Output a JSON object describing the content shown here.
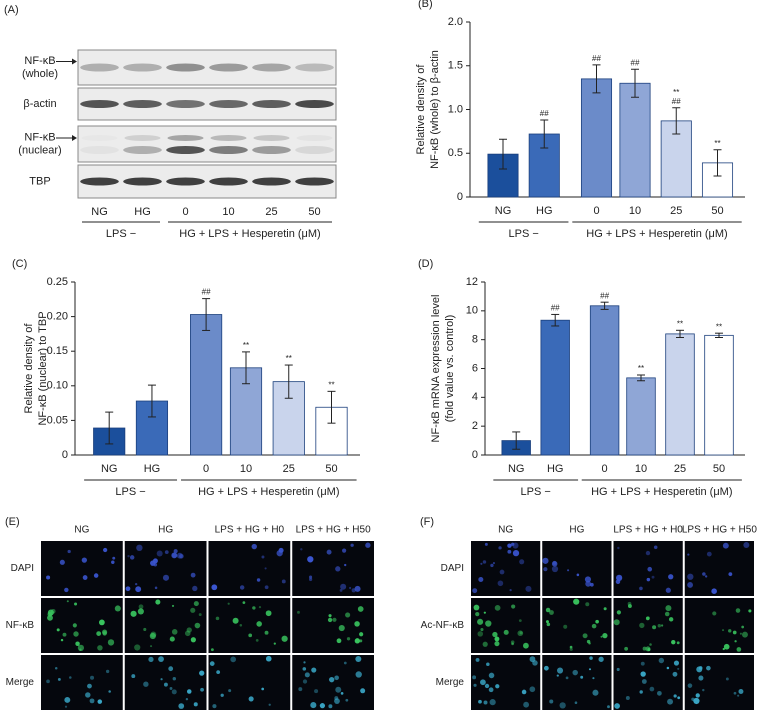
{
  "blot": {
    "panel": "(A)",
    "rows": [
      {
        "label": [
          "NF-κB",
          "(whole)"
        ]
      },
      {
        "label": [
          "β-actin"
        ]
      },
      {
        "label": [
          "NF-κB",
          "(nuclear)"
        ]
      },
      {
        "label": [
          "TBP"
        ]
      }
    ],
    "lanes": [
      "NG",
      "HG",
      "0",
      "10",
      "25",
      "50"
    ],
    "groups": [
      "LPS −",
      "HG + LPS + Hesperetin (μM)"
    ]
  },
  "chart_data": [
    {
      "type": "bar",
      "panel": "(B)",
      "y_label": [
        "Relative density of",
        "NF-κB (whole) to β-actin"
      ],
      "categories": [
        "NG",
        "HG",
        "0",
        "10",
        "25",
        "50"
      ],
      "groups": [
        "LPS −",
        "HG + LPS + Hesperetin (μM)"
      ],
      "values": [
        0.49,
        0.72,
        1.35,
        1.3,
        0.87,
        0.39
      ],
      "errors": [
        0.17,
        0.16,
        0.16,
        0.16,
        0.15,
        0.15
      ],
      "colors": [
        "#1b4f9c",
        "#3a6ab8",
        "#6b8bc9",
        "#8fa6d6",
        "#c9d4ec",
        "#ffffff"
      ],
      "annotations": [
        {
          "index": 1,
          "text": "##"
        },
        {
          "index": 2,
          "text": "##"
        },
        {
          "index": 3,
          "text": "##"
        },
        {
          "index": 4,
          "text": "##"
        },
        {
          "index": 4,
          "text": "**"
        },
        {
          "index": 5,
          "text": "**"
        }
      ],
      "ylim": [
        0,
        2
      ],
      "yticks": [
        0,
        0.5,
        {
          "value": 1,
          "label": "1.0"
        },
        1.5,
        {
          "value": 2,
          "label": "2.0"
        }
      ]
    },
    {
      "type": "bar",
      "panel": "(C)",
      "y_label": [
        "Relative density of",
        "NF-κB (nuclear) to TBP"
      ],
      "categories": [
        "NG",
        "HG",
        "0",
        "10",
        "25",
        "50"
      ],
      "groups": [
        "LPS −",
        "HG + LPS + Hesperetin (μM)"
      ],
      "values": [
        0.039,
        0.078,
        0.203,
        0.126,
        0.106,
        0.069
      ],
      "errors": [
        0.023,
        0.023,
        0.023,
        0.023,
        0.024,
        0.023
      ],
      "colors": [
        "#1b4f9c",
        "#3a6ab8",
        "#6b8bc9",
        "#8fa6d6",
        "#c9d4ec",
        "#ffffff"
      ],
      "annotations": [
        {
          "index": 2,
          "text": "##"
        },
        {
          "index": 3,
          "text": "**"
        },
        {
          "index": 4,
          "text": "**"
        },
        {
          "index": 5,
          "text": "**"
        }
      ],
      "ylim": [
        0,
        0.25
      ],
      "yticks": [
        0,
        0.05,
        {
          "value": 0.1,
          "label": "0.10"
        },
        0.15,
        {
          "value": 0.2,
          "label": "0.20"
        },
        0.25
      ]
    },
    {
      "type": "bar",
      "panel": "(D)",
      "y_label": [
        "NF-κB mRNA expression level",
        "(fold value vs. control)"
      ],
      "categories": [
        "NG",
        "HG",
        "0",
        "10",
        "25",
        "50"
      ],
      "groups": [
        "LPS −",
        "HG + LPS + Hesperetin (μM)"
      ],
      "values": [
        1.0,
        9.35,
        10.35,
        5.35,
        8.4,
        8.3
      ],
      "errors": [
        0.6,
        0.4,
        0.25,
        0.2,
        0.25,
        0.15
      ],
      "colors": [
        "#1b4f9c",
        "#3a6ab8",
        "#6b8bc9",
        "#8fa6d6",
        "#c9d4ec",
        "#ffffff"
      ],
      "annotations": [
        {
          "index": 1,
          "text": "##"
        },
        {
          "index": 2,
          "text": "##"
        },
        {
          "index": 3,
          "text": "**"
        },
        {
          "index": 4,
          "text": "**"
        },
        {
          "index": 5,
          "text": "**"
        }
      ],
      "ylim": [
        0,
        12
      ],
      "yticks": [
        0,
        2,
        4,
        6,
        8,
        10,
        12
      ]
    }
  ],
  "images": [
    {
      "panel": "(E)",
      "columns": [
        "NG",
        "HG",
        "LPS + HG + H0",
        "LPS + HG + H50"
      ],
      "rows": [
        "DAPI",
        "NF-κB",
        "Merge"
      ]
    },
    {
      "panel": "(F)",
      "columns": [
        "NG",
        "HG",
        "LPS + HG + H0",
        "LPS + HG + H50"
      ],
      "rows": [
        "DAPI",
        "Ac-NF-κB",
        "Merge"
      ]
    }
  ]
}
